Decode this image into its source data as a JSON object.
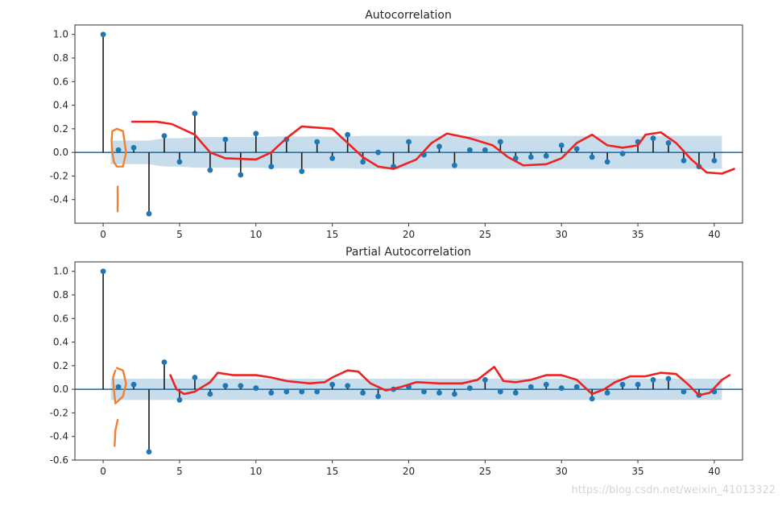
{
  "watermark": "https://blog.csdn.net/weixin_41013322",
  "colors": {
    "stem": "#1a1a1a",
    "marker": "#1f77b4",
    "band": "#1f77b4",
    "zero": "#1f77b4",
    "red": "#ee2222",
    "orange": "#f08030"
  },
  "chart_data": [
    {
      "type": "stem",
      "title": "Autocorrelation",
      "xlabel": "",
      "ylabel": "",
      "xlim": [
        -1.85,
        41.85
      ],
      "ylim": [
        -0.6,
        1.08
      ],
      "xticks": [
        0,
        5,
        10,
        15,
        20,
        25,
        30,
        35,
        40
      ],
      "yticks": [
        1.0,
        0.8,
        0.6,
        0.4,
        0.2,
        0.0,
        -0.2,
        -0.4
      ],
      "ytick_labels": [
        "1.0",
        "0.8",
        "0.6",
        "0.4",
        "0.2",
        "0.0",
        "-0.2",
        "-0.4"
      ],
      "lags": [
        0,
        1,
        2,
        3,
        4,
        5,
        6,
        7,
        8,
        9,
        10,
        11,
        12,
        13,
        14,
        15,
        16,
        17,
        18,
        19,
        20,
        21,
        22,
        23,
        24,
        25,
        26,
        27,
        28,
        29,
        30,
        31,
        32,
        33,
        34,
        35,
        36,
        37,
        38,
        39,
        40
      ],
      "values": [
        1.0,
        0.02,
        0.04,
        -0.52,
        0.14,
        -0.08,
        0.33,
        -0.15,
        0.11,
        -0.19,
        0.16,
        -0.12,
        0.11,
        -0.16,
        0.09,
        -0.05,
        0.15,
        -0.08,
        0.0,
        -0.12,
        0.09,
        -0.02,
        0.05,
        -0.11,
        0.02,
        0.02,
        0.09,
        -0.05,
        -0.04,
        -0.03,
        0.06,
        0.03,
        -0.04,
        -0.08,
        -0.01,
        0.09,
        0.12,
        0.08,
        -0.07,
        -0.12,
        -0.07
      ],
      "confidence_upper": [
        0.0,
        0.1,
        0.1,
        0.1,
        0.12,
        0.12,
        0.13,
        0.13,
        0.13,
        0.13,
        0.13,
        0.135,
        0.135,
        0.135,
        0.135,
        0.135,
        0.135,
        0.14,
        0.14,
        0.14,
        0.14,
        0.14,
        0.14,
        0.14,
        0.14,
        0.14,
        0.14,
        0.14,
        0.14,
        0.14,
        0.14,
        0.14,
        0.14,
        0.14,
        0.14,
        0.14,
        0.14,
        0.14,
        0.14,
        0.14,
        0.14
      ],
      "annotation_red": [
        [
          1.9,
          0.26
        ],
        [
          3.5,
          0.26
        ],
        [
          4.5,
          0.24
        ],
        [
          6.0,
          0.15
        ],
        [
          7.0,
          0.0
        ],
        [
          8.0,
          -0.05
        ],
        [
          10.0,
          -0.06
        ],
        [
          11.0,
          0.0
        ],
        [
          12.0,
          0.12
        ],
        [
          13.0,
          0.22
        ],
        [
          15.0,
          0.2
        ],
        [
          16.0,
          0.08
        ],
        [
          17.0,
          -0.04
        ],
        [
          18.0,
          -0.12
        ],
        [
          19.0,
          -0.14
        ],
        [
          20.5,
          -0.06
        ],
        [
          21.5,
          0.08
        ],
        [
          22.5,
          0.16
        ],
        [
          24.0,
          0.12
        ],
        [
          25.5,
          0.06
        ],
        [
          26.5,
          -0.04
        ],
        [
          27.5,
          -0.11
        ],
        [
          29.0,
          -0.1
        ],
        [
          30.0,
          -0.05
        ],
        [
          31.0,
          0.08
        ],
        [
          32.0,
          0.15
        ],
        [
          33.0,
          0.06
        ],
        [
          34.0,
          0.04
        ],
        [
          35.0,
          0.06
        ],
        [
          35.5,
          0.15
        ],
        [
          36.5,
          0.17
        ],
        [
          37.5,
          0.08
        ],
        [
          38.5,
          -0.06
        ],
        [
          39.5,
          -0.17
        ],
        [
          40.5,
          -0.18
        ],
        [
          41.3,
          -0.14
        ]
      ],
      "annotation_orange": [
        [
          [
            0.9,
            0.2
          ],
          [
            0.6,
            0.18
          ],
          [
            0.55,
            0.1
          ],
          [
            0.6,
            0.0
          ],
          [
            0.7,
            -0.08
          ],
          [
            0.9,
            -0.12
          ],
          [
            1.3,
            -0.12
          ],
          [
            1.5,
            0.0
          ],
          [
            1.3,
            0.18
          ],
          [
            0.9,
            0.2
          ]
        ],
        [
          [
            0.95,
            -0.29
          ],
          [
            0.95,
            -0.5
          ]
        ]
      ]
    },
    {
      "type": "stem",
      "title": "Partial Autocorrelation",
      "xlabel": "",
      "ylabel": "",
      "xlim": [
        -1.85,
        41.85
      ],
      "ylim": [
        -0.6,
        1.08
      ],
      "xticks": [
        0,
        5,
        10,
        15,
        20,
        25,
        30,
        35,
        40
      ],
      "yticks": [
        1.0,
        0.8,
        0.6,
        0.4,
        0.2,
        0.0,
        -0.2,
        -0.4,
        -0.6
      ],
      "ytick_labels": [
        "1.0",
        "0.8",
        "0.6",
        "0.4",
        "0.2",
        "0.0",
        "-0.2",
        "-0.4",
        "-0.6"
      ],
      "lags": [
        0,
        1,
        2,
        3,
        4,
        5,
        6,
        7,
        8,
        9,
        10,
        11,
        12,
        13,
        14,
        15,
        16,
        17,
        18,
        19,
        20,
        21,
        22,
        23,
        24,
        25,
        26,
        27,
        28,
        29,
        30,
        31,
        32,
        33,
        34,
        35,
        36,
        37,
        38,
        39,
        40
      ],
      "values": [
        1.0,
        0.02,
        0.04,
        -0.53,
        0.23,
        -0.09,
        0.1,
        -0.04,
        0.03,
        0.03,
        0.01,
        -0.03,
        -0.02,
        -0.02,
        -0.02,
        0.04,
        0.03,
        -0.03,
        -0.06,
        0.0,
        0.02,
        -0.02,
        -0.03,
        -0.04,
        0.01,
        0.08,
        -0.02,
        -0.03,
        0.02,
        0.04,
        0.01,
        0.02,
        -0.08,
        -0.03,
        0.04,
        0.04,
        0.08,
        0.09,
        -0.02,
        -0.05,
        -0.02
      ],
      "confidence_upper": [
        0.0,
        0.09,
        0.09,
        0.09,
        0.09,
        0.09,
        0.09,
        0.09,
        0.09,
        0.09,
        0.09,
        0.09,
        0.09,
        0.09,
        0.09,
        0.09,
        0.09,
        0.09,
        0.09,
        0.09,
        0.09,
        0.09,
        0.09,
        0.09,
        0.09,
        0.09,
        0.09,
        0.09,
        0.09,
        0.09,
        0.09,
        0.09,
        0.09,
        0.09,
        0.09,
        0.09,
        0.09,
        0.09,
        0.09,
        0.09,
        0.09
      ],
      "annotation_red": [
        [
          4.4,
          0.12
        ],
        [
          4.8,
          0.0
        ],
        [
          5.3,
          -0.04
        ],
        [
          6.0,
          -0.02
        ],
        [
          7.0,
          0.06
        ],
        [
          7.5,
          0.14
        ],
        [
          8.5,
          0.12
        ],
        [
          10.0,
          0.12
        ],
        [
          11.0,
          0.1
        ],
        [
          12.0,
          0.07
        ],
        [
          13.5,
          0.05
        ],
        [
          14.5,
          0.06
        ],
        [
          15.0,
          0.1
        ],
        [
          16.0,
          0.16
        ],
        [
          16.7,
          0.15
        ],
        [
          17.5,
          0.05
        ],
        [
          18.5,
          -0.01
        ],
        [
          19.5,
          0.02
        ],
        [
          20.5,
          0.06
        ],
        [
          22.0,
          0.05
        ],
        [
          23.5,
          0.05
        ],
        [
          24.5,
          0.08
        ],
        [
          25.3,
          0.16
        ],
        [
          25.6,
          0.19
        ],
        [
          26.2,
          0.07
        ],
        [
          27.0,
          0.06
        ],
        [
          28.0,
          0.08
        ],
        [
          29.0,
          0.12
        ],
        [
          30.0,
          0.12
        ],
        [
          31.0,
          0.08
        ],
        [
          32.0,
          -0.04
        ],
        [
          32.8,
          0.0
        ],
        [
          33.5,
          0.06
        ],
        [
          34.5,
          0.11
        ],
        [
          35.5,
          0.11
        ],
        [
          36.5,
          0.14
        ],
        [
          37.5,
          0.13
        ],
        [
          38.3,
          0.04
        ],
        [
          39.0,
          -0.05
        ],
        [
          39.7,
          -0.03
        ],
        [
          40.5,
          0.08
        ],
        [
          41.0,
          0.12
        ]
      ],
      "annotation_orange": [
        [
          [
            0.8,
            0.16
          ],
          [
            0.65,
            0.1
          ],
          [
            0.7,
            0.0
          ],
          [
            0.8,
            -0.12
          ],
          [
            1.3,
            -0.06
          ],
          [
            1.5,
            0.05
          ],
          [
            1.3,
            0.16
          ],
          [
            0.9,
            0.18
          ]
        ],
        [
          [
            0.95,
            -0.26
          ],
          [
            0.8,
            -0.35
          ],
          [
            0.75,
            -0.48
          ]
        ]
      ]
    }
  ]
}
